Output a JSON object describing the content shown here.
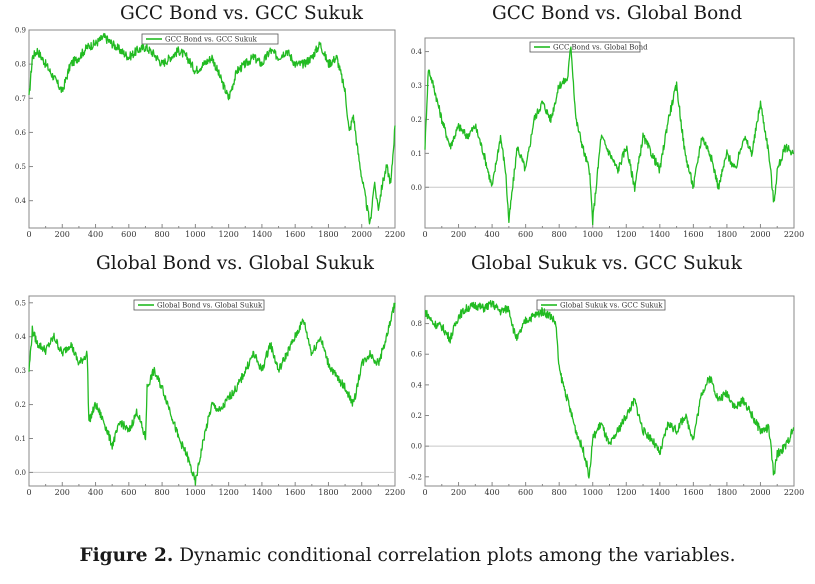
{
  "caption": {
    "label": "Figure 2.",
    "text": "Dynamic conditional correlation plots among the variables."
  },
  "colors": {
    "series": "#22bb22",
    "zero_line": "#c8c8c8",
    "axis": "#888888"
  },
  "chart_data": [
    {
      "type": "line",
      "title": "GCC Bond vs. GCC Sukuk",
      "legend": "GCC Bond vs. GCC Sukuk",
      "legend_position": "top-center",
      "xlim": [
        0,
        2200
      ],
      "ylim": [
        0.32,
        0.9
      ],
      "x_ticks": [
        0,
        200,
        400,
        600,
        800,
        1000,
        1200,
        1400,
        1600,
        1800,
        2000,
        2200
      ],
      "y_ticks": [
        0.4,
        0.5,
        0.6,
        0.7,
        0.8,
        0.9
      ],
      "y_tick_labels": [
        "0.4",
        "0.5",
        "0.6",
        "0.7",
        "0.8",
        "0.9"
      ],
      "zero_line": false,
      "series": [
        {
          "name": "GCC Bond vs. GCC Sukuk",
          "x": [
            0,
            20,
            50,
            100,
            150,
            200,
            250,
            300,
            350,
            400,
            450,
            500,
            550,
            600,
            650,
            700,
            750,
            800,
            850,
            900,
            950,
            1000,
            1050,
            1100,
            1150,
            1200,
            1250,
            1300,
            1350,
            1400,
            1450,
            1500,
            1550,
            1600,
            1650,
            1700,
            1750,
            1800,
            1850,
            1900,
            1925,
            1950,
            1975,
            2000,
            2025,
            2050,
            2075,
            2100,
            2125,
            2150,
            2175,
            2200
          ],
          "y": [
            0.7,
            0.82,
            0.84,
            0.8,
            0.76,
            0.72,
            0.8,
            0.82,
            0.85,
            0.86,
            0.88,
            0.86,
            0.84,
            0.82,
            0.84,
            0.85,
            0.83,
            0.8,
            0.82,
            0.84,
            0.82,
            0.78,
            0.8,
            0.82,
            0.76,
            0.7,
            0.78,
            0.8,
            0.82,
            0.8,
            0.84,
            0.82,
            0.84,
            0.8,
            0.8,
            0.82,
            0.86,
            0.8,
            0.82,
            0.72,
            0.6,
            0.65,
            0.55,
            0.47,
            0.4,
            0.33,
            0.45,
            0.38,
            0.45,
            0.5,
            0.45,
            0.62
          ]
        }
      ]
    },
    {
      "type": "line",
      "title": "GCC Bond vs. Global Bond",
      "legend": "GCC Bond vs. Global Bond",
      "legend_position": "top-right",
      "xlim": [
        0,
        2200
      ],
      "ylim": [
        -0.12,
        0.44
      ],
      "x_ticks": [
        0,
        200,
        400,
        600,
        800,
        1000,
        1200,
        1400,
        1600,
        1800,
        2000,
        2200
      ],
      "y_ticks": [
        0,
        0.1,
        0.2,
        0.3,
        0.4
      ],
      "y_tick_labels": [
        "0.0",
        "0.1",
        "0.2",
        "0.3",
        "0.4"
      ],
      "zero_line": true,
      "series": [
        {
          "name": "GCC Bond vs. Global Bond",
          "x": [
            0,
            20,
            50,
            100,
            150,
            200,
            250,
            300,
            350,
            400,
            450,
            480,
            500,
            550,
            600,
            650,
            700,
            750,
            800,
            850,
            870,
            900,
            950,
            980,
            1000,
            1050,
            1100,
            1150,
            1200,
            1250,
            1300,
            1350,
            1400,
            1450,
            1500,
            1550,
            1600,
            1650,
            1700,
            1750,
            1800,
            1850,
            1900,
            1950,
            2000,
            2050,
            2080,
            2100,
            2150,
            2200
          ],
          "y": [
            0.12,
            0.35,
            0.3,
            0.2,
            0.12,
            0.18,
            0.15,
            0.18,
            0.1,
            0.0,
            0.15,
            0.05,
            -0.1,
            0.12,
            0.05,
            0.2,
            0.25,
            0.2,
            0.3,
            0.32,
            0.42,
            0.2,
            0.1,
            0.05,
            -0.1,
            0.15,
            0.1,
            0.05,
            0.12,
            0.0,
            0.15,
            0.1,
            0.05,
            0.2,
            0.3,
            0.1,
            0.0,
            0.15,
            0.1,
            0.0,
            0.1,
            0.05,
            0.15,
            0.1,
            0.25,
            0.1,
            -0.05,
            0.05,
            0.12,
            0.1
          ]
        }
      ]
    },
    {
      "type": "line",
      "title": "Global Bond vs. Global Sukuk",
      "legend": "Global Bond vs. Global Sukuk",
      "legend_position": "top-center",
      "xlim": [
        0,
        2200
      ],
      "ylim": [
        -0.04,
        0.52
      ],
      "x_ticks": [
        0,
        200,
        400,
        600,
        800,
        1000,
        1200,
        1400,
        1600,
        1800,
        2000,
        2200
      ],
      "y_ticks": [
        0,
        0.1,
        0.2,
        0.3,
        0.4,
        0.5
      ],
      "y_tick_labels": [
        "0.0",
        "0.1",
        "0.2",
        "0.3",
        "0.4",
        "0.5"
      ],
      "zero_line": true,
      "series": [
        {
          "name": "Global Bond vs. Global Sukuk",
          "x": [
            0,
            20,
            50,
            100,
            150,
            200,
            250,
            300,
            350,
            360,
            400,
            450,
            500,
            550,
            600,
            650,
            700,
            710,
            750,
            800,
            850,
            900,
            950,
            1000,
            1050,
            1100,
            1150,
            1200,
            1250,
            1300,
            1350,
            1400,
            1450,
            1500,
            1550,
            1600,
            1650,
            1700,
            1750,
            1800,
            1850,
            1900,
            1950,
            2000,
            2050,
            2100,
            2150,
            2200
          ],
          "y": [
            0.3,
            0.42,
            0.38,
            0.36,
            0.4,
            0.35,
            0.38,
            0.32,
            0.35,
            0.15,
            0.2,
            0.15,
            0.08,
            0.15,
            0.12,
            0.18,
            0.1,
            0.25,
            0.3,
            0.25,
            0.18,
            0.1,
            0.05,
            -0.03,
            0.1,
            0.2,
            0.18,
            0.22,
            0.25,
            0.3,
            0.35,
            0.3,
            0.38,
            0.3,
            0.35,
            0.4,
            0.45,
            0.35,
            0.4,
            0.32,
            0.28,
            0.25,
            0.2,
            0.32,
            0.35,
            0.32,
            0.4,
            0.5
          ]
        }
      ]
    },
    {
      "type": "line",
      "title": "Global Sukuk vs. GCC Sukuk",
      "legend": "Global Sukuk vs. GCC Sukuk",
      "legend_position": "top-center",
      "xlim": [
        0,
        2200
      ],
      "ylim": [
        -0.26,
        0.98
      ],
      "x_ticks": [
        0,
        200,
        400,
        600,
        800,
        1000,
        1200,
        1400,
        1600,
        1800,
        2000,
        2200
      ],
      "y_ticks": [
        -0.2,
        0,
        0.2,
        0.4,
        0.6,
        0.8
      ],
      "y_tick_labels": [
        "-0.2",
        "0.0",
        "0.2",
        "0.4",
        "0.6",
        "0.8"
      ],
      "zero_line": true,
      "series": [
        {
          "name": "Global Sukuk vs. GCC Sukuk",
          "x": [
            0,
            20,
            50,
            100,
            150,
            200,
            250,
            300,
            350,
            400,
            450,
            500,
            530,
            550,
            600,
            650,
            700,
            750,
            780,
            800,
            850,
            900,
            950,
            980,
            1000,
            1050,
            1100,
            1150,
            1200,
            1250,
            1300,
            1350,
            1400,
            1450,
            1500,
            1550,
            1600,
            1650,
            1700,
            1750,
            1800,
            1850,
            1900,
            1950,
            2000,
            2050,
            2080,
            2100,
            2150,
            2200
          ],
          "y": [
            0.88,
            0.85,
            0.8,
            0.78,
            0.7,
            0.85,
            0.9,
            0.92,
            0.9,
            0.93,
            0.88,
            0.9,
            0.75,
            0.7,
            0.82,
            0.85,
            0.88,
            0.85,
            0.8,
            0.5,
            0.3,
            0.1,
            -0.05,
            -0.2,
            0.05,
            0.15,
            0.0,
            0.1,
            0.2,
            0.3,
            0.1,
            0.05,
            -0.05,
            0.15,
            0.1,
            0.2,
            0.05,
            0.35,
            0.45,
            0.3,
            0.35,
            0.25,
            0.3,
            0.2,
            0.1,
            0.12,
            -0.2,
            -0.05,
            0.0,
            0.12
          ]
        }
      ]
    }
  ]
}
